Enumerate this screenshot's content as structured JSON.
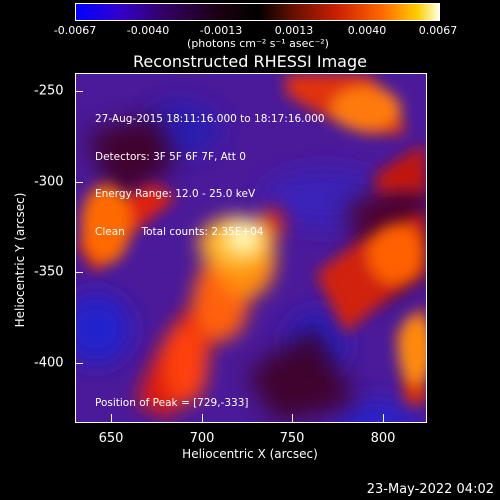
{
  "colorbar": {
    "tick_labels": [
      "-0.0067",
      "-0.0040",
      "-0.0013",
      "0.0013",
      "0.0040",
      "0.0067"
    ],
    "unit_label": "(photons cm⁻² s⁻¹ asec⁻²)"
  },
  "title": "Reconstructed RHESSI Image",
  "info_lines": [
    "27-Aug-2015 18:11:16.000 to 18:17:16.000",
    "Detectors: 3F 5F 6F 7F, Att 0",
    "Energy Range: 12.0 - 25.0 keV",
    "Clean     Total counts: 2.35E+04"
  ],
  "peak_text": "Position of Peak = [729,-333]",
  "x_axis": {
    "label": "Heliocentric X (arcsec)",
    "ticks": [
      "650",
      "700",
      "750",
      "800"
    ]
  },
  "y_axis": {
    "label": "Heliocentric Y (arcsec)",
    "ticks": [
      "-250",
      "-300",
      "-350",
      "-400"
    ]
  },
  "footer": "23-May-2022 04:02"
}
